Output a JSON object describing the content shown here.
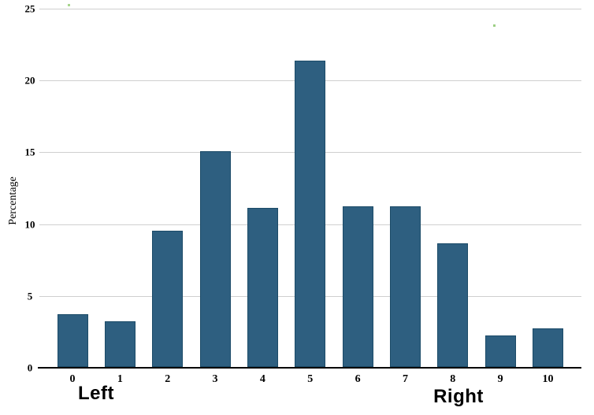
{
  "chart_data": {
    "type": "bar",
    "title": "",
    "xlabel": "",
    "ylabel": "Percentage",
    "categories": [
      "0",
      "1",
      "2",
      "3",
      "4",
      "5",
      "6",
      "7",
      "8",
      "9",
      "10"
    ],
    "values": [
      3.7,
      3.2,
      9.5,
      15.0,
      11.1,
      21.3,
      11.2,
      11.2,
      8.6,
      2.2,
      2.7
    ],
    "ylim": [
      0,
      25
    ],
    "yticks": [
      0,
      5,
      10,
      15,
      20,
      25
    ],
    "grid": "horizontal-gridlines-on",
    "legend": "none",
    "bar_color": "#2E5F80",
    "bar_border_color": "#1C4B68",
    "gridline_color": "#CFCFCF",
    "axis_color": "#000000",
    "annotations": [
      {
        "text": "Left",
        "position": "below-x-axis-under-0-1"
      },
      {
        "text": "Right",
        "position": "below-x-axis-under-8-9"
      }
    ]
  },
  "artifacts": {
    "specks": [
      {
        "name": "green-speck-top-left",
        "color": "#A8D68E"
      },
      {
        "name": "green-speck-top-right",
        "color": "#9CCF84"
      }
    ]
  }
}
